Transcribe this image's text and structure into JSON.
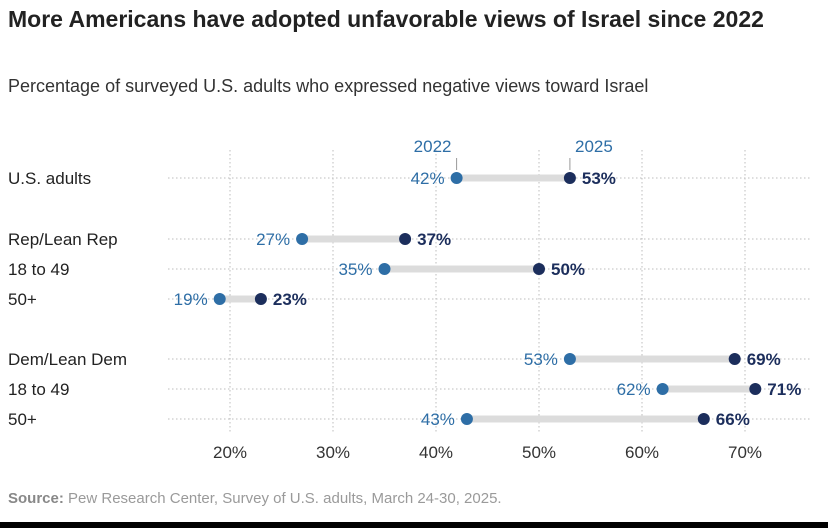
{
  "title": "More Americans have adopted unfavorable views of Israel since 2022",
  "subtitle": "Percentage of surveyed U.S. adults who expressed negative views toward Israel",
  "source": {
    "label": "Source:",
    "text": " Pew Research Center, Survey of U.S. adults, March 24-30, 2025."
  },
  "colors": {
    "y2022": "#2e6ea6",
    "y2025": "#1c2e5c",
    "connector": "#dcdcdc",
    "grid": "#bdbdbd"
  },
  "chart_data": {
    "type": "dumbbell",
    "title": "More Americans have adopted unfavorable views of Israel since 2022",
    "subtitle": "Percentage of surveyed U.S. adults who expressed negative views toward Israel",
    "series_names": [
      "2022",
      "2025"
    ],
    "xlim": [
      13,
      74
    ],
    "xticks": [
      20,
      30,
      40,
      50,
      60,
      70
    ],
    "xtick_labels": [
      "20%",
      "30%",
      "40%",
      "50%",
      "60%",
      "70%"
    ],
    "grid": true,
    "rows": [
      {
        "label": "U.S. adults",
        "v2022": 42,
        "v2025": 53,
        "l2022": "42%",
        "l2025": "53%"
      },
      {
        "label": "Rep/Lean Rep",
        "v2022": 27,
        "v2025": 37,
        "l2022": "27%",
        "l2025": "37%"
      },
      {
        "label": "18 to 49",
        "v2022": 35,
        "v2025": 50,
        "l2022": "35%",
        "l2025": "50%"
      },
      {
        "label": "50+",
        "v2022": 19,
        "v2025": 23,
        "l2022": "19%",
        "l2025": "23%"
      },
      {
        "label": "Dem/Lean Dem",
        "v2022": 53,
        "v2025": 69,
        "l2022": "53%",
        "l2025": "69%"
      },
      {
        "label": "18 to 49",
        "v2022": 62,
        "v2025": 71,
        "l2022": "62%",
        "l2025": "71%"
      },
      {
        "label": "50+",
        "v2022": 43,
        "v2025": 66,
        "l2022": "43%",
        "l2025": "66%"
      }
    ]
  }
}
